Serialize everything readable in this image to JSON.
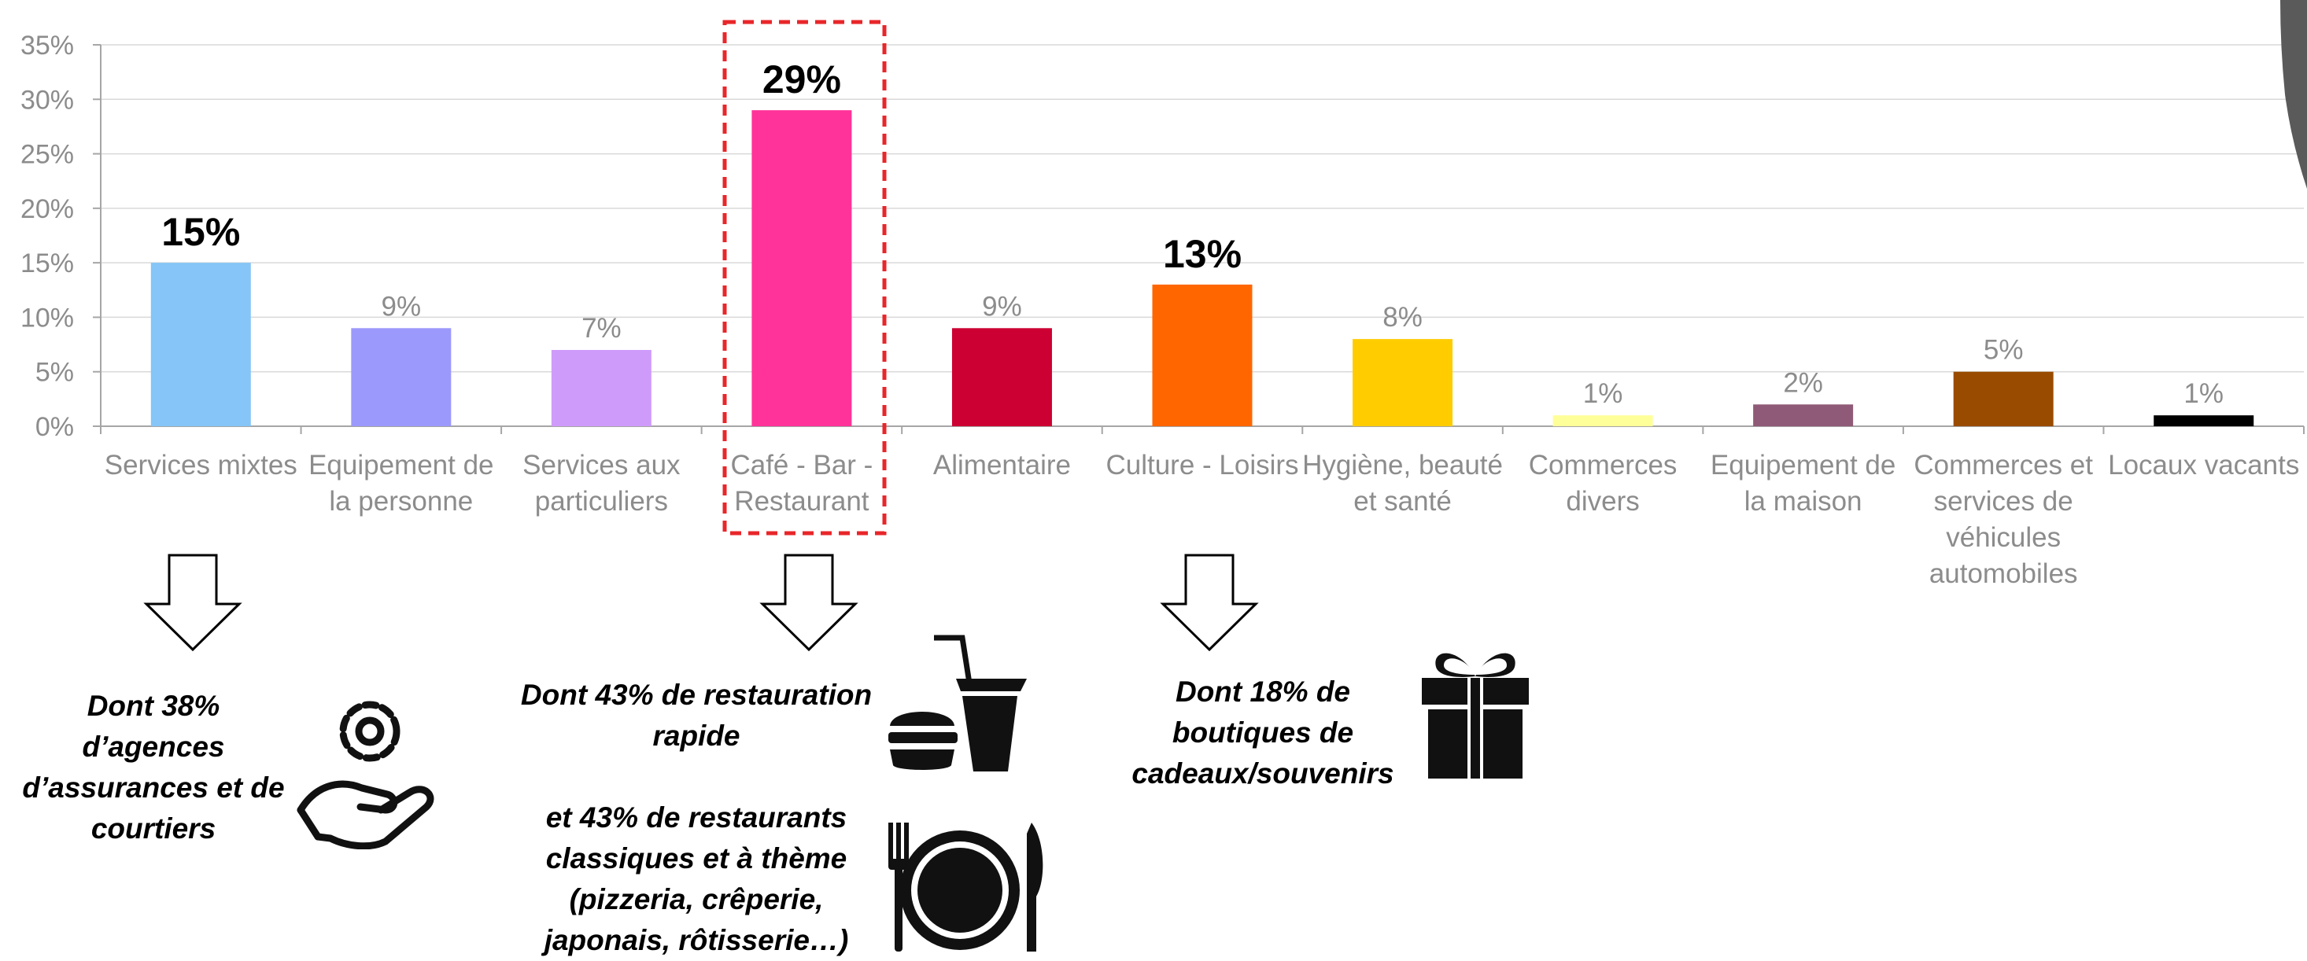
{
  "chart_data": {
    "type": "bar",
    "categories": [
      "Services mixtes",
      "Equipement de la personne",
      "Services aux particuliers",
      "Café - Bar - Restaurant",
      "Alimentaire",
      "Culture - Loisirs",
      "Hygiène, beauté et santé",
      "Commerces divers",
      "Equipement de la maison",
      "Commerces et services de véhicules automobiles",
      "Locaux vacants"
    ],
    "category_lines": [
      [
        "Services mixtes"
      ],
      [
        "Equipement de",
        "la personne"
      ],
      [
        "Services aux",
        "particuliers"
      ],
      [
        "Café - Bar -",
        "Restaurant"
      ],
      [
        "Alimentaire"
      ],
      [
        "Culture - Loisirs"
      ],
      [
        "Hygiène, beauté",
        "et santé"
      ],
      [
        "Commerces",
        "divers"
      ],
      [
        "Equipement de",
        "la maison"
      ],
      [
        "Commerces et",
        "services de",
        "véhicules",
        "automobiles"
      ],
      [
        "Locaux vacants"
      ]
    ],
    "values": [
      15,
      9,
      7,
      29,
      9,
      13,
      8,
      1,
      2,
      5,
      1
    ],
    "value_labels": [
      "15%",
      "9%",
      "7%",
      "29%",
      "9%",
      "13%",
      "8%",
      "1%",
      "2%",
      "5%",
      "1%"
    ],
    "emphasized": [
      true,
      false,
      false,
      true,
      false,
      true,
      false,
      false,
      false,
      false,
      false
    ],
    "colors": [
      "#85C5F7",
      "#9B99FB",
      "#CF9BFB",
      "#FF3399",
      "#CC0033",
      "#FF6600",
      "#FFCC00",
      "#FFFF99",
      "#8F5A77",
      "#994C00",
      "#000000"
    ],
    "ylim": [
      0,
      35
    ],
    "yticks": [
      "0%",
      "5%",
      "10%",
      "15%",
      "20%",
      "25%",
      "30%",
      "35%"
    ],
    "highlight_category": "Café - Bar - Restaurant",
    "grid": true,
    "title": "",
    "xlabel": "",
    "ylabel": ""
  },
  "annotations": {
    "services": {
      "lines": [
        "Dont 38%",
        "d’agences",
        "d’assurances et de",
        "courtiers"
      ],
      "icon": "gear-hand-icon"
    },
    "restaurant": {
      "lines_a": [
        "Dont 43% de restauration",
        "rapide"
      ],
      "lines_b": [
        "et 43% de restaurants",
        "classiques et à thème",
        "(pizzeria, crêperie,",
        "japonais, rôtisserie…)"
      ],
      "icon_a": "burger-drink-icon",
      "icon_b": "plate-cutlery-icon"
    },
    "culture": {
      "lines": [
        "Dont 18% de",
        "boutiques de",
        "cadeaux/souvenirs"
      ],
      "icon": "gift-icon"
    }
  },
  "colors": {
    "highlight_border": "#E8262A",
    "arrow": "#000000"
  }
}
